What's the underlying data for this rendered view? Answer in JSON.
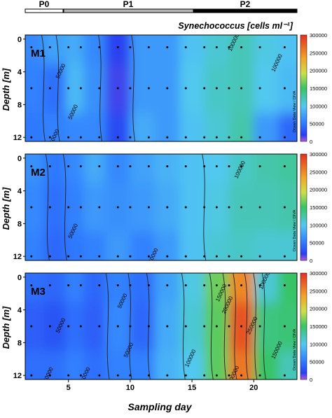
{
  "phase_bar": {
    "labels": [
      "P0",
      "P1",
      "P2"
    ],
    "colors": [
      "#ffffff",
      "#b5b5b5",
      "#000000"
    ]
  },
  "chart_data": {
    "type": "heatmap",
    "title": "Synechococcus [cells ml⁻¹]",
    "xlabel": "Sampling day",
    "ylabel": "Depth [m]",
    "xlim": [
      1.5,
      23.5
    ],
    "ylim": [
      12.5,
      -0.5
    ],
    "x_ticks": [
      "5",
      "10",
      "15",
      "20"
    ],
    "y_ticks": [
      "0",
      "4",
      "8",
      "12"
    ],
    "colorbar_ticks": [
      "0",
      "50000",
      "100000",
      "150000",
      "200000",
      "250000",
      "300000"
    ],
    "colorbar_range": [
      0,
      300000
    ],
    "colorscale": [
      "#b45ad6",
      "#2a3ff0",
      "#2f7bff",
      "#52c8f2",
      "#38c466",
      "#cbe04a",
      "#f0a52a",
      "#e33020"
    ],
    "watermark": "Ocean Data View / DIVA",
    "panels": [
      {
        "name": "M1",
        "profiles": [
          {
            "day": 2,
            "depths": [
              0,
              6,
              12
            ],
            "values": [
              60000,
              55000,
              50000
            ]
          },
          {
            "day": 4,
            "depths": [
              0,
              6,
              12
            ],
            "values": [
              75000,
              45000,
              55000
            ]
          },
          {
            "day": 5.5,
            "depths": [
              0,
              6,
              12
            ],
            "values": [
              80000,
              90000,
              60000
            ]
          },
          {
            "day": 7,
            "depths": [
              0,
              6,
              12
            ],
            "values": [
              60000,
              65000,
              60000
            ]
          },
          {
            "day": 9,
            "depths": [
              0,
              6,
              12
            ],
            "values": [
              20000,
              15000,
              25000
            ]
          },
          {
            "day": 11,
            "depths": [
              0,
              6,
              12
            ],
            "values": [
              70000,
              70000,
              80000
            ]
          },
          {
            "day": 13,
            "depths": [
              0,
              6,
              12
            ],
            "values": [
              70000,
              70000,
              70000
            ]
          },
          {
            "day": 15,
            "depths": [
              0,
              6,
              12
            ],
            "values": [
              95000,
              100000,
              95000
            ]
          },
          {
            "day": 17,
            "depths": [
              0,
              6,
              12
            ],
            "values": [
              110000,
              115000,
              110000
            ]
          },
          {
            "day": 19,
            "depths": [
              0,
              6,
              12
            ],
            "values": [
              120000,
              120000,
              125000
            ]
          },
          {
            "day": 21,
            "depths": [
              0,
              6,
              12
            ],
            "values": [
              105000,
              100000,
              70000
            ]
          },
          {
            "day": 23,
            "depths": [
              0,
              6,
              12
            ],
            "values": [
              95000,
              90000,
              40000
            ]
          }
        ],
        "contour_labels": [
          "50000",
          "50000",
          "50000",
          "100000",
          "100000"
        ]
      },
      {
        "name": "M2",
        "profiles": [
          {
            "day": 2,
            "depths": [
              0,
              6,
              12
            ],
            "values": [
              65000,
              60000,
              55000
            ]
          },
          {
            "day": 4,
            "depths": [
              0,
              6,
              12
            ],
            "values": [
              50000,
              45000,
              40000
            ]
          },
          {
            "day": 5.5,
            "depths": [
              0,
              6,
              12
            ],
            "values": [
              60000,
              55000,
              50000
            ]
          },
          {
            "day": 7,
            "depths": [
              0,
              6,
              12
            ],
            "values": [
              80000,
              70000,
              55000
            ]
          },
          {
            "day": 9,
            "depths": [
              0,
              6,
              12
            ],
            "values": [
              60000,
              65000,
              70000
            ]
          },
          {
            "day": 11,
            "depths": [
              0,
              6,
              12
            ],
            "values": [
              75000,
              70000,
              55000
            ]
          },
          {
            "day": 13,
            "depths": [
              0,
              6,
              12
            ],
            "values": [
              85000,
              80000,
              70000
            ]
          },
          {
            "day": 15,
            "depths": [
              0,
              6,
              12
            ],
            "values": [
              95000,
              95000,
              95000
            ]
          },
          {
            "day": 17,
            "depths": [
              0,
              6,
              12
            ],
            "values": [
              100000,
              105000,
              110000
            ]
          },
          {
            "day": 19,
            "depths": [
              0,
              6,
              12
            ],
            "values": [
              115000,
              120000,
              115000
            ]
          },
          {
            "day": 21,
            "depths": [
              0,
              6,
              12
            ],
            "values": [
              125000,
              120000,
              110000
            ]
          },
          {
            "day": 23,
            "depths": [
              0,
              6,
              12
            ],
            "values": [
              130000,
              125000,
              110000
            ]
          }
        ],
        "contour_labels": [
          "50000",
          "50000",
          "100000"
        ]
      },
      {
        "name": "M3",
        "profiles": [
          {
            "day": 2,
            "depths": [
              0,
              6,
              12
            ],
            "values": [
              45000,
              35000,
              45000
            ]
          },
          {
            "day": 4,
            "depths": [
              0,
              6,
              12
            ],
            "values": [
              40000,
              30000,
              45000
            ]
          },
          {
            "day": 5.5,
            "depths": [
              0,
              6,
              12
            ],
            "values": [
              55000,
              45000,
              55000
            ]
          },
          {
            "day": 7,
            "depths": [
              0,
              6,
              12
            ],
            "values": [
              40000,
              35000,
              45000
            ]
          },
          {
            "day": 9,
            "depths": [
              0,
              6,
              12
            ],
            "values": [
              55000,
              60000,
              55000
            ]
          },
          {
            "day": 11,
            "depths": [
              0,
              6,
              12
            ],
            "values": [
              45000,
              40000,
              55000
            ]
          },
          {
            "day": 13,
            "depths": [
              0,
              6,
              12
            ],
            "values": [
              75000,
              80000,
              85000
            ]
          },
          {
            "day": 15,
            "depths": [
              0,
              6,
              12
            ],
            "values": [
              105000,
              110000,
              100000
            ]
          },
          {
            "day": 17,
            "depths": [
              0,
              6,
              12
            ],
            "values": [
              165000,
              160000,
              160000
            ]
          },
          {
            "day": 19,
            "depths": [
              0,
              6,
              12
            ],
            "values": [
              250000,
              280000,
              260000
            ]
          },
          {
            "day": 21,
            "depths": [
              0,
              6,
              12
            ],
            "values": [
              110000,
              140000,
              150000
            ]
          },
          {
            "day": 23,
            "depths": [
              0,
              6,
              12
            ],
            "values": [
              150000,
              145000,
              120000
            ]
          }
        ],
        "contour_labels": [
          "50000",
          "50000",
          "50000",
          "50000",
          "50000",
          "100000",
          "150000",
          "200000",
          "200000",
          "250000",
          "100000",
          "150000"
        ]
      }
    ],
    "sample_days": [
      2,
      3.5,
      5,
      6,
      7.5,
      9,
      10,
      11.5,
      13,
      14.5,
      16,
      17,
      18,
      19,
      20.5,
      22.5
    ],
    "sample_depths": [
      1,
      6,
      12
    ]
  }
}
